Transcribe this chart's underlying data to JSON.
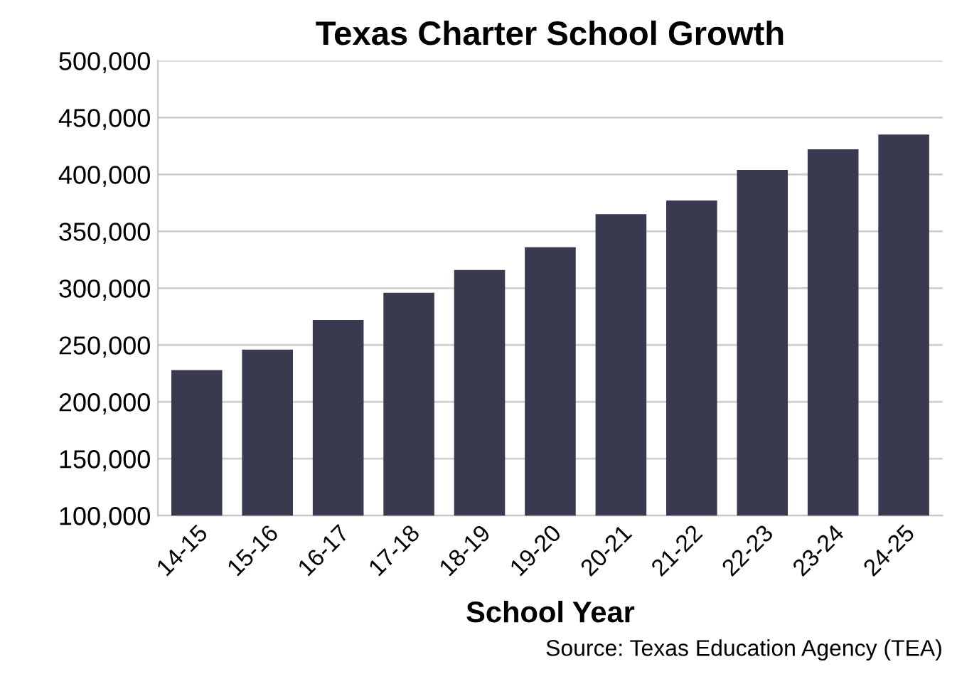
{
  "chart_data": {
    "type": "bar",
    "title": "Texas Charter School Growth",
    "xlabel": "School Year",
    "categories": [
      "14-15",
      "15-16",
      "16-17",
      "17-18",
      "18-19",
      "19-20",
      "20-21",
      "21-22",
      "22-23",
      "23-24",
      "24-25"
    ],
    "values": [
      228000,
      246000,
      272000,
      296000,
      316000,
      336000,
      365000,
      377000,
      404000,
      422000,
      435000
    ],
    "color": "#393a4f",
    "ylim": [
      100000,
      500000
    ],
    "yticks": [
      {
        "value": 100000,
        "label": "100,000"
      },
      {
        "value": 150000,
        "label": "150,000"
      },
      {
        "value": 200000,
        "label": "200,000"
      },
      {
        "value": 250000,
        "label": "250,000"
      },
      {
        "value": 300000,
        "label": "300,000"
      },
      {
        "value": 350000,
        "label": "350,000"
      },
      {
        "value": 400000,
        "label": "400,000"
      },
      {
        "value": 450000,
        "label": "450,000"
      },
      {
        "value": 500000,
        "label": "500,000"
      }
    ],
    "grid": "y",
    "annotations": [
      "Source: Texas Education Agency (TEA)"
    ]
  }
}
